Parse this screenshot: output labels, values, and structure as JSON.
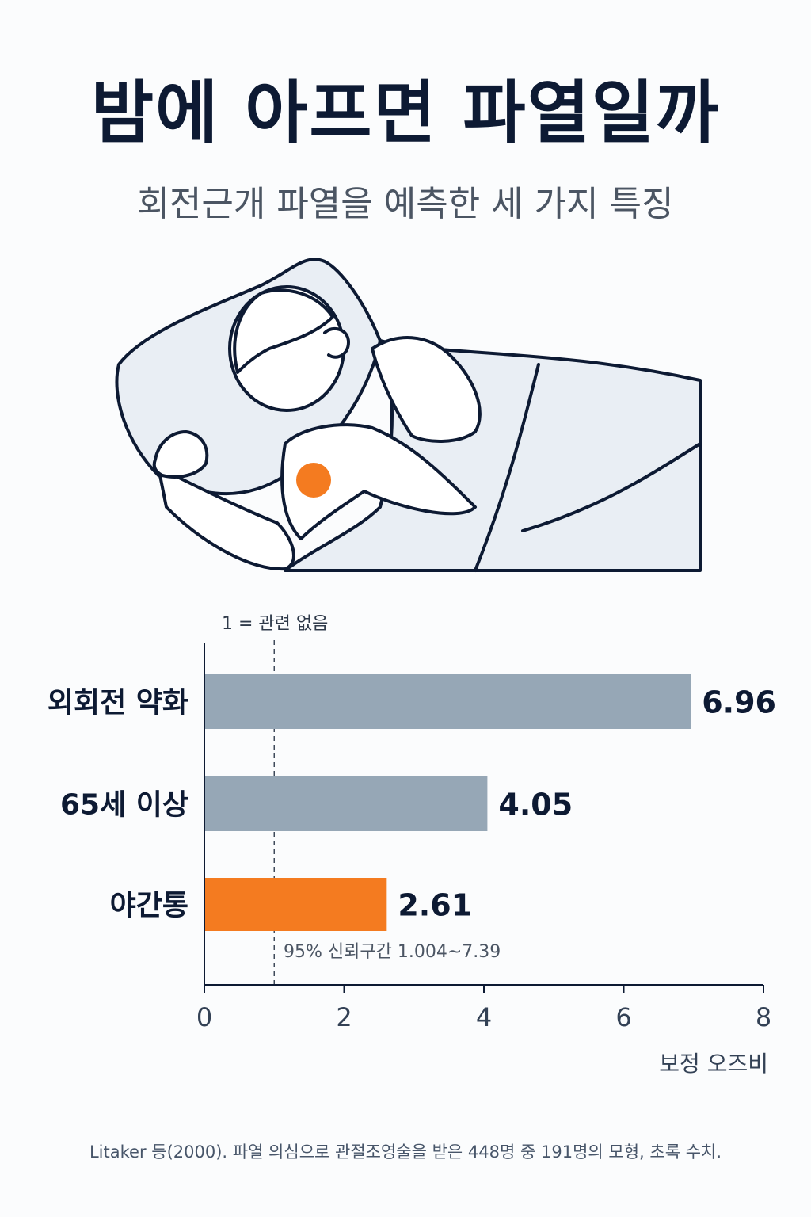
{
  "title": "밤에 아프면 파열일까",
  "subtitle": "회전근개 파열을 예측한 세 가지 특징",
  "illustration": {
    "icon": "sleeping-person-shoulder-pain-icon",
    "highlight_color": "#f47b20"
  },
  "chart_data": {
    "type": "bar",
    "orientation": "horizontal",
    "categories": [
      "외회전 약화",
      "65세 이상",
      "야간통"
    ],
    "values": [
      6.96,
      4.05,
      2.61
    ],
    "value_labels": [
      "6.96",
      "4.05",
      "2.61"
    ],
    "bar_colors": [
      "#96a7b6",
      "#96a7b6",
      "#f47b20"
    ],
    "xlabel": "보정 오즈비",
    "xlim": [
      0,
      8
    ],
    "xticks": [
      "0",
      "2",
      "4",
      "6",
      "8"
    ],
    "reference_line": {
      "value": 1,
      "label": "1 = 관련 없음"
    },
    "annotation": "95% 신뢰구간 1.004~7.39",
    "grid": false
  },
  "footer": "Litaker 등(2000). 파열 의심으로 관절조영술을 받은 448명 중 191명의 모형, 초록 수치."
}
